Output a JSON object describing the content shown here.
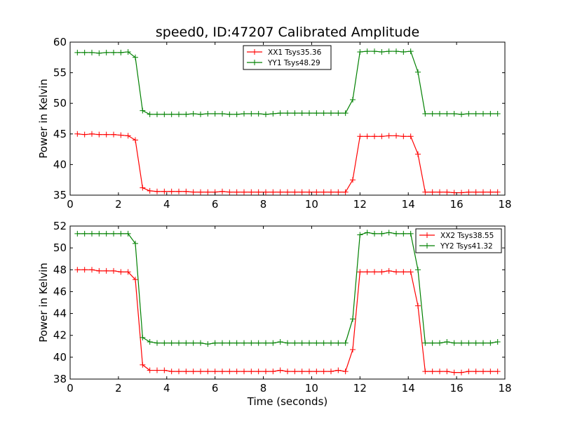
{
  "title": "speed0, ID:47207 Calibrated Amplitude",
  "colors": {
    "xx": "#ff0000",
    "yy": "#008000",
    "axis": "#000000"
  },
  "chart_data": [
    {
      "type": "line",
      "xlabel": "",
      "ylabel": "Power in Kelvin",
      "xlim": [
        0,
        18
      ],
      "ylim": [
        35,
        60
      ],
      "xticks": [
        0,
        2,
        4,
        6,
        8,
        10,
        12,
        14,
        16,
        18
      ],
      "yticks": [
        35,
        40,
        45,
        50,
        55,
        60
      ],
      "grid": false,
      "legend_position": "top-center",
      "x": [
        0.3,
        0.6,
        0.9,
        1.2,
        1.5,
        1.8,
        2.1,
        2.4,
        2.7,
        3.0,
        3.3,
        3.6,
        3.9,
        4.2,
        4.5,
        4.8,
        5.1,
        5.4,
        5.7,
        6.0,
        6.3,
        6.6,
        6.9,
        7.2,
        7.5,
        7.8,
        8.1,
        8.4,
        8.7,
        9.0,
        9.3,
        9.6,
        9.9,
        10.2,
        10.5,
        10.8,
        11.1,
        11.4,
        11.7,
        12.0,
        12.3,
        12.6,
        12.9,
        13.2,
        13.5,
        13.8,
        14.1,
        14.4,
        14.7,
        15.0,
        15.3,
        15.6,
        15.9,
        16.2,
        16.5,
        16.8,
        17.1,
        17.4,
        17.7
      ],
      "series": [
        {
          "name": "XX1 Tsys35.36",
          "color": "#ff0000",
          "values": [
            45.0,
            44.9,
            45.0,
            44.9,
            44.9,
            44.9,
            44.8,
            44.7,
            44.0,
            36.2,
            35.7,
            35.6,
            35.6,
            35.6,
            35.6,
            35.6,
            35.5,
            35.5,
            35.5,
            35.5,
            35.6,
            35.5,
            35.5,
            35.5,
            35.5,
            35.5,
            35.5,
            35.5,
            35.5,
            35.5,
            35.5,
            35.5,
            35.5,
            35.5,
            35.5,
            35.5,
            35.5,
            35.5,
            37.5,
            44.6,
            44.6,
            44.6,
            44.6,
            44.7,
            44.7,
            44.6,
            44.6,
            41.7,
            35.5,
            35.5,
            35.5,
            35.5,
            35.4,
            35.4,
            35.5,
            35.5,
            35.5,
            35.5,
            35.5
          ]
        },
        {
          "name": "YY1 Tsys48.29",
          "color": "#008000",
          "values": [
            58.3,
            58.3,
            58.3,
            58.2,
            58.3,
            58.3,
            58.3,
            58.4,
            57.5,
            48.8,
            48.2,
            48.2,
            48.2,
            48.2,
            48.2,
            48.2,
            48.3,
            48.2,
            48.3,
            48.3,
            48.3,
            48.2,
            48.2,
            48.3,
            48.3,
            48.3,
            48.2,
            48.3,
            48.4,
            48.4,
            48.4,
            48.4,
            48.4,
            48.4,
            48.4,
            48.4,
            48.4,
            48.4,
            50.6,
            58.4,
            58.5,
            58.5,
            58.4,
            58.5,
            58.5,
            58.4,
            58.5,
            55.1,
            48.3,
            48.3,
            48.3,
            48.3,
            48.3,
            48.2,
            48.3,
            48.3,
            48.3,
            48.3,
            48.3
          ]
        }
      ]
    },
    {
      "type": "line",
      "xlabel": "Time (seconds)",
      "ylabel": "Power in Kelvin",
      "xlim": [
        0,
        18
      ],
      "ylim": [
        38,
        52
      ],
      "xticks": [
        0,
        2,
        4,
        6,
        8,
        10,
        12,
        14,
        16,
        18
      ],
      "yticks": [
        38,
        40,
        42,
        44,
        46,
        48,
        50,
        52
      ],
      "grid": false,
      "legend_position": "top-right",
      "x": [
        0.3,
        0.6,
        0.9,
        1.2,
        1.5,
        1.8,
        2.1,
        2.4,
        2.7,
        3.0,
        3.3,
        3.6,
        3.9,
        4.2,
        4.5,
        4.8,
        5.1,
        5.4,
        5.7,
        6.0,
        6.3,
        6.6,
        6.9,
        7.2,
        7.5,
        7.8,
        8.1,
        8.4,
        8.7,
        9.0,
        9.3,
        9.6,
        9.9,
        10.2,
        10.5,
        10.8,
        11.1,
        11.4,
        11.7,
        12.0,
        12.3,
        12.6,
        12.9,
        13.2,
        13.5,
        13.8,
        14.1,
        14.4,
        14.7,
        15.0,
        15.3,
        15.6,
        15.9,
        16.2,
        16.5,
        16.8,
        17.1,
        17.4,
        17.7
      ],
      "series": [
        {
          "name": "XX2 Tsys38.55",
          "color": "#ff0000",
          "values": [
            48.0,
            48.0,
            48.0,
            47.9,
            47.9,
            47.9,
            47.8,
            47.8,
            47.1,
            39.3,
            38.8,
            38.8,
            38.8,
            38.7,
            38.7,
            38.7,
            38.7,
            38.7,
            38.7,
            38.7,
            38.7,
            38.7,
            38.7,
            38.7,
            38.7,
            38.7,
            38.7,
            38.7,
            38.8,
            38.7,
            38.7,
            38.7,
            38.7,
            38.7,
            38.7,
            38.7,
            38.8,
            38.7,
            40.7,
            47.8,
            47.8,
            47.8,
            47.8,
            47.9,
            47.8,
            47.8,
            47.8,
            44.7,
            38.7,
            38.7,
            38.7,
            38.7,
            38.6,
            38.6,
            38.7,
            38.7,
            38.7,
            38.7,
            38.7
          ]
        },
        {
          "name": "YY2 Tsys41.32",
          "color": "#008000",
          "values": [
            51.3,
            51.3,
            51.3,
            51.3,
            51.3,
            51.3,
            51.3,
            51.3,
            50.4,
            41.8,
            41.4,
            41.3,
            41.3,
            41.3,
            41.3,
            41.3,
            41.3,
            41.3,
            41.2,
            41.3,
            41.3,
            41.3,
            41.3,
            41.3,
            41.3,
            41.3,
            41.3,
            41.3,
            41.4,
            41.3,
            41.3,
            41.3,
            41.3,
            41.3,
            41.3,
            41.3,
            41.3,
            41.3,
            43.5,
            51.2,
            51.4,
            51.3,
            51.3,
            51.4,
            51.3,
            51.3,
            51.3,
            48.0,
            41.3,
            41.3,
            41.3,
            41.4,
            41.3,
            41.3,
            41.3,
            41.3,
            41.3,
            41.3,
            41.4
          ]
        }
      ]
    }
  ]
}
